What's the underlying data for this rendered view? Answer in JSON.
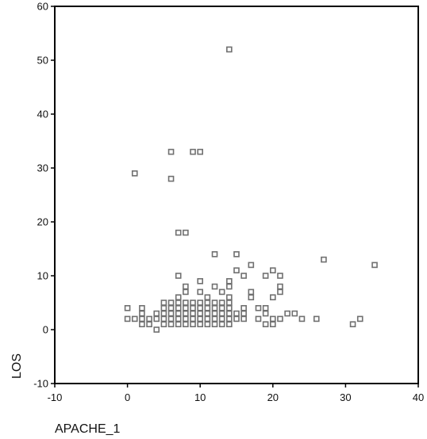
{
  "chart_data": {
    "type": "scatter",
    "title": "",
    "xlabel": "APACHE_1",
    "ylabel": "LOS",
    "xlim": [
      -10,
      40
    ],
    "ylim": [
      -10,
      60
    ],
    "xticks": [
      -10,
      0,
      10,
      20,
      30,
      40
    ],
    "yticks": [
      -10,
      0,
      10,
      20,
      30,
      40,
      50,
      60
    ],
    "grid": false,
    "marker": "hollow-square",
    "marker_color": "#707070",
    "series": [
      {
        "points": [
          [
            1,
            29
          ],
          [
            6,
            33
          ],
          [
            6,
            28
          ],
          [
            9,
            33
          ],
          [
            10,
            33
          ],
          [
            14,
            52
          ],
          [
            7,
            18
          ],
          [
            8,
            18
          ],
          [
            12,
            14
          ],
          [
            15,
            14
          ],
          [
            27,
            13
          ],
          [
            34,
            12
          ],
          [
            17,
            12
          ],
          [
            15,
            11
          ],
          [
            20,
            11
          ],
          [
            7,
            10
          ],
          [
            16,
            10
          ],
          [
            19,
            10
          ],
          [
            21,
            10
          ],
          [
            10,
            9
          ],
          [
            14,
            9
          ],
          [
            8,
            8
          ],
          [
            12,
            8
          ],
          [
            14,
            8
          ],
          [
            21,
            8
          ],
          [
            8,
            7
          ],
          [
            10,
            7
          ],
          [
            13,
            7
          ],
          [
            17,
            7
          ],
          [
            21,
            7
          ],
          [
            7,
            6
          ],
          [
            11,
            6
          ],
          [
            14,
            6
          ],
          [
            17,
            6
          ],
          [
            20,
            6
          ],
          [
            5,
            5
          ],
          [
            6,
            5
          ],
          [
            7,
            5
          ],
          [
            8,
            5
          ],
          [
            9,
            5
          ],
          [
            10,
            5
          ],
          [
            11,
            5
          ],
          [
            12,
            5
          ],
          [
            13,
            5
          ],
          [
            14,
            5
          ],
          [
            5,
            4
          ],
          [
            6,
            4
          ],
          [
            7,
            4
          ],
          [
            8,
            4
          ],
          [
            9,
            4
          ],
          [
            10,
            4
          ],
          [
            11,
            4
          ],
          [
            12,
            4
          ],
          [
            13,
            4
          ],
          [
            14,
            4
          ],
          [
            16,
            4
          ],
          [
            18,
            4
          ],
          [
            19,
            4
          ],
          [
            0,
            4
          ],
          [
            2,
            4
          ],
          [
            2,
            3
          ],
          [
            4,
            3
          ],
          [
            5,
            3
          ],
          [
            6,
            3
          ],
          [
            7,
            3
          ],
          [
            8,
            3
          ],
          [
            9,
            3
          ],
          [
            10,
            3
          ],
          [
            11,
            3
          ],
          [
            12,
            3
          ],
          [
            13,
            3
          ],
          [
            14,
            3
          ],
          [
            15,
            3
          ],
          [
            16,
            3
          ],
          [
            19,
            3
          ],
          [
            22,
            3
          ],
          [
            23,
            3
          ],
          [
            0,
            2
          ],
          [
            1,
            2
          ],
          [
            2,
            2
          ],
          [
            3,
            2
          ],
          [
            4,
            2
          ],
          [
            5,
            2
          ],
          [
            6,
            2
          ],
          [
            7,
            2
          ],
          [
            8,
            2
          ],
          [
            9,
            2
          ],
          [
            10,
            2
          ],
          [
            11,
            2
          ],
          [
            12,
            2
          ],
          [
            13,
            2
          ],
          [
            14,
            2
          ],
          [
            15,
            2
          ],
          [
            16,
            2
          ],
          [
            18,
            2
          ],
          [
            20,
            2
          ],
          [
            21,
            2
          ],
          [
            24,
            2
          ],
          [
            26,
            2
          ],
          [
            32,
            2
          ],
          [
            2,
            1
          ],
          [
            3,
            1
          ],
          [
            5,
            1
          ],
          [
            6,
            1
          ],
          [
            7,
            1
          ],
          [
            8,
            1
          ],
          [
            9,
            1
          ],
          [
            10,
            1
          ],
          [
            11,
            1
          ],
          [
            12,
            1
          ],
          [
            13,
            1
          ],
          [
            14,
            1
          ],
          [
            19,
            1
          ],
          [
            20,
            1
          ],
          [
            31,
            1
          ],
          [
            4,
            0
          ]
        ]
      }
    ]
  }
}
